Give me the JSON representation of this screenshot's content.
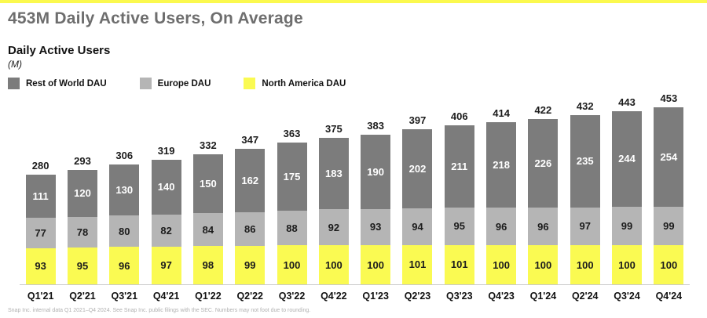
{
  "page": {
    "title": "453M Daily Active Users, On Average",
    "footer": "Snap Inc. internal data Q1 2021–Q4 2024. See Snap Inc. public filings with the SEC. Numbers may not foot due to rounding."
  },
  "chart_header": {
    "heading": "Daily Active Users",
    "unit": "(M)"
  },
  "colors": {
    "accent_strip": "#fbf94e",
    "rest_of_world": "#7c7c7c",
    "europe": "#b5b5b5",
    "north_america": "#fafa52",
    "title_gray": "#6e6e6e",
    "baseline_gray": "#c9c9c9"
  },
  "legend": [
    {
      "label": "Rest of World DAU",
      "color": "#7c7c7c"
    },
    {
      "label": "Europe DAU",
      "color": "#b5b5b5"
    },
    {
      "label": "North America DAU",
      "color": "#fafa52"
    }
  ],
  "chart_data": {
    "type": "bar",
    "stacked": true,
    "title": "Daily Active Users",
    "ylabel": "(M)",
    "ylim": [
      0,
      453
    ],
    "grid": false,
    "legend_position": "top-left",
    "categories": [
      "Q1'21",
      "Q2'21",
      "Q3'21",
      "Q4'21",
      "Q1'22",
      "Q2'22",
      "Q3'22",
      "Q4'22",
      "Q1'23",
      "Q2'23",
      "Q3'23",
      "Q4'23",
      "Q1'24",
      "Q2'24",
      "Q3'24",
      "Q4'24"
    ],
    "totals": [
      280,
      293,
      306,
      319,
      332,
      347,
      363,
      375,
      383,
      397,
      406,
      414,
      422,
      432,
      443,
      453
    ],
    "series": [
      {
        "name": "Rest of World DAU",
        "color": "#7c7c7c",
        "label_color": "#ffffff",
        "values": [
          111,
          120,
          130,
          140,
          150,
          162,
          175,
          183,
          190,
          202,
          211,
          218,
          226,
          235,
          244,
          254
        ]
      },
      {
        "name": "Europe DAU",
        "color": "#b5b5b5",
        "label_color": "#1c1c1c",
        "values": [
          77,
          78,
          80,
          82,
          84,
          86,
          88,
          92,
          93,
          94,
          95,
          96,
          96,
          97,
          99,
          99
        ]
      },
      {
        "name": "North America DAU",
        "color": "#fafa52",
        "label_color": "#1c1c1c",
        "values": [
          93,
          95,
          96,
          97,
          98,
          99,
          100,
          100,
          100,
          101,
          101,
          100,
          100,
          100,
          100,
          100
        ]
      }
    ]
  }
}
